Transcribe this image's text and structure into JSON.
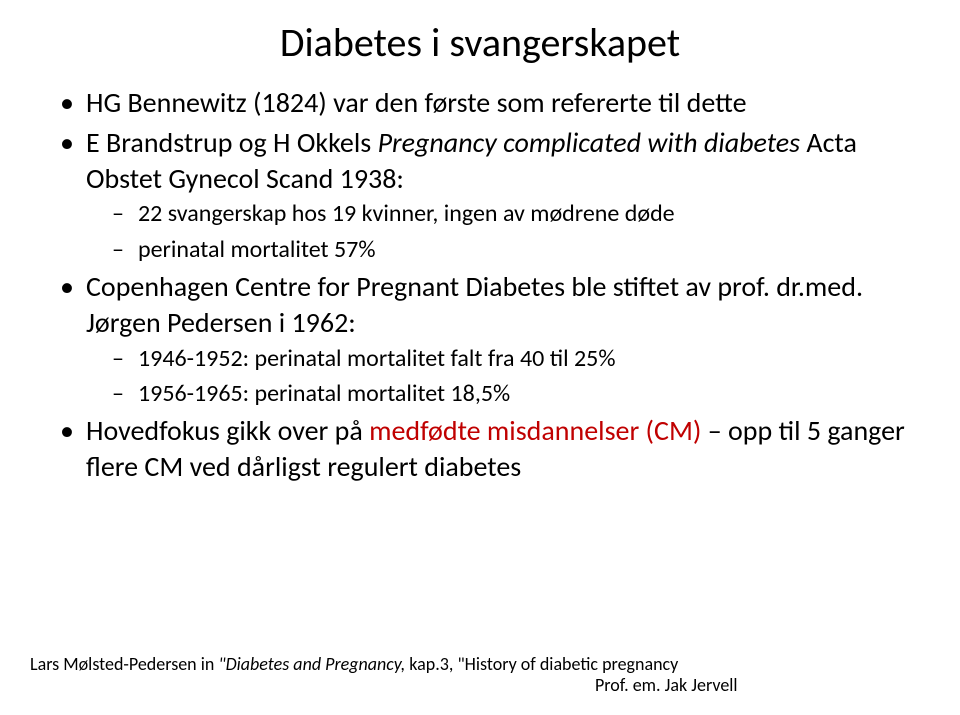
{
  "title": "Diabetes i svangerskapet",
  "bullets": [
    {
      "text": "HG Bennewitz (1824) var den første som refererte til dette"
    },
    {
      "prefix": "E Brandstrup og H Okkels ",
      "italic": "Pregnancy complicated with diabetes",
      "suffix": " Acta Obstet Gynecol Scand 1938:",
      "sub": [
        {
          "text": " 22 svangerskap hos 19 kvinner, ingen av mødrene døde"
        },
        {
          "text": "perinatal mortalitet  57%"
        }
      ]
    },
    {
      "text": "Copenhagen Centre for Pregnant Diabetes ble stiftet av prof. dr.med. Jørgen Pedersen i 1962:",
      "sub": [
        {
          "text": "1946-1952: perinatal mortalitet falt fra 40 til 25%"
        },
        {
          "text": "1956-1965: perinatal mortalitet 18,5%"
        }
      ]
    },
    {
      "prefix": "Hovedfokus gikk over på ",
      "red": "medfødte misdannelser (CM)",
      "suffix": " – opp til 5 ganger flere CM ved dårligst regulert diabetes"
    }
  ],
  "footer": {
    "line1_prefix": "Lars Mølsted-Pedersen in ",
    "line1_italic": "\"Diabetes and Pregnancy,",
    "line1_suffix": " kap.3, \"History of diabetic pregnancy",
    "line2": "Prof. em. Jak Jervell"
  },
  "colors": {
    "text": "#000000",
    "red": "#c00000",
    "background": "#ffffff"
  }
}
